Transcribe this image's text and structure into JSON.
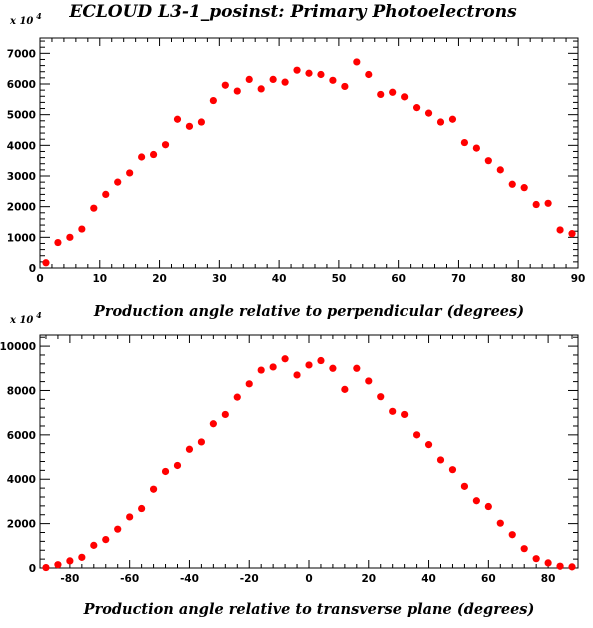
{
  "title": "ECLOUD L3-1_posinst: Primary Photoelectrons",
  "colors": {
    "marker": "#ff0000",
    "axis": "#000000"
  },
  "chart_data": [
    {
      "type": "scatter",
      "xlabel": "Production angle relative to perpendicular (degrees)",
      "ylabel": "",
      "y_multiplier": "x 10",
      "y_multiplier_exp": "4",
      "xlim": [
        0,
        90
      ],
      "ylim": [
        0,
        7500
      ],
      "xticks": [
        0,
        10,
        20,
        30,
        40,
        50,
        60,
        70,
        80,
        90
      ],
      "yticks": [
        0,
        1000,
        2000,
        3000,
        4000,
        5000,
        6000,
        7000
      ],
      "x": [
        1,
        3,
        5,
        7,
        9,
        11,
        13,
        15,
        17,
        19,
        21,
        23,
        25,
        27,
        29,
        31,
        33,
        35,
        37,
        39,
        41,
        43,
        45,
        47,
        49,
        51,
        53,
        55,
        57,
        59,
        61,
        63,
        65,
        67,
        69,
        71,
        73,
        75,
        77,
        79,
        81,
        83,
        85,
        87,
        89
      ],
      "y": [
        170,
        830,
        1000,
        1270,
        1950,
        2400,
        2800,
        3100,
        3620,
        3700,
        4020,
        4850,
        4620,
        4760,
        5460,
        5960,
        5770,
        6150,
        5840,
        6150,
        6060,
        6450,
        6350,
        6310,
        6120,
        5920,
        6720,
        6310,
        5660,
        5730,
        5580,
        5230,
        5050,
        4760,
        4850,
        4090,
        3910,
        3500,
        3200,
        2730,
        2620,
        2070,
        2110,
        1240,
        1120
      ]
    },
    {
      "type": "scatter",
      "xlabel": "Production angle relative to transverse plane (degrees)",
      "ylabel": "",
      "y_multiplier": "x 10",
      "y_multiplier_exp": "4",
      "xlim": [
        -90,
        90
      ],
      "ylim": [
        0,
        10500
      ],
      "xticks": [
        -80,
        -60,
        -40,
        -20,
        0,
        20,
        40,
        60,
        80
      ],
      "yticks": [
        0,
        2000,
        4000,
        6000,
        8000,
        10000
      ],
      "x": [
        -88,
        -84,
        -80,
        -76,
        -72,
        -68,
        -64,
        -60,
        -56,
        -52,
        -48,
        -44,
        -40,
        -36,
        -32,
        -28,
        -24,
        -20,
        -16,
        -12,
        -8,
        -4,
        0,
        4,
        8,
        12,
        16,
        20,
        24,
        28,
        32,
        36,
        40,
        44,
        48,
        52,
        56,
        60,
        64,
        68,
        72,
        76,
        80,
        84,
        88
      ],
      "y": [
        20,
        150,
        320,
        480,
        1020,
        1280,
        1750,
        2300,
        2680,
        3550,
        4350,
        4620,
        5350,
        5680,
        6500,
        6920,
        7700,
        8300,
        8920,
        9060,
        9430,
        8700,
        9150,
        9350,
        9000,
        8050,
        9000,
        8430,
        7720,
        7060,
        6920,
        6000,
        5560,
        4870,
        4430,
        3680,
        3030,
        2770,
        2020,
        1500,
        870,
        420,
        230,
        80,
        50
      ]
    }
  ]
}
